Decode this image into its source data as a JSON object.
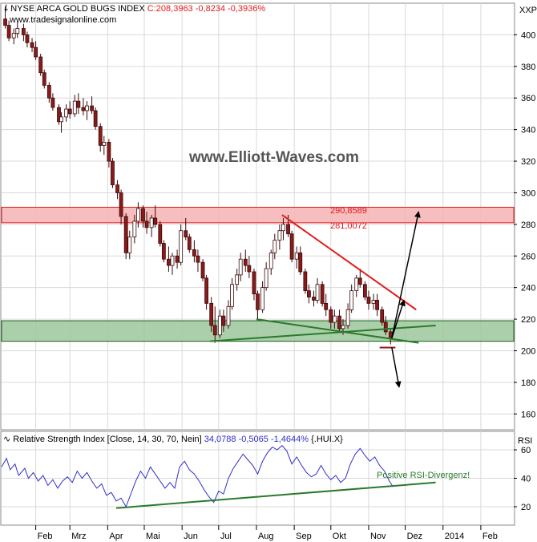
{
  "colors": {
    "candle_up": "#ffffff",
    "candle_down": "#8b1a1a",
    "resistance_zone": "#f4b3b3",
    "support_zone": "#9cc79c",
    "red_line": "#e31b1b",
    "green_line": "#2b7a2b",
    "rsi_line": "#2f2fc9",
    "rsi_value": "#2f2fc9",
    "price_change": "#e31b1b",
    "grid": "#d9d9d9"
  },
  "header": {
    "title": "NYSE ARCA GOLD BUGS INDEX",
    "last": "C:208,3963 -0,8234 -0,3936%",
    "source": "www.tradesignalonline.com",
    "axis_label": "XXP"
  },
  "watermark": "www.Elliott-Waves.com",
  "rsi_header": {
    "study": "Relative Strength Index [Close, 14, 30, 70, Nein]",
    "value": "34,0788 -0,5065 -1,4644%",
    "symbol": "{.HUI.X}",
    "axis_label": "RSI"
  },
  "annotations": {
    "resistance_top": "290,8589",
    "resistance_bottom": "281,0072",
    "divergence": "Positive RSI-Divergenz!"
  },
  "chart_data": [
    {
      "type": "candlestick",
      "title": "NYSE ARCA GOLD BUGS INDEX",
      "x_ticks": [
        "Feb",
        "Mrz",
        "Apr",
        "Mai",
        "Jun",
        "Jul",
        "Aug",
        "Sep",
        "Okt",
        "Nov",
        "Dez",
        "2014",
        "Feb"
      ],
      "y_ticks": [
        160,
        180,
        200,
        220,
        240,
        260,
        280,
        300,
        320,
        340,
        360,
        380,
        400
      ],
      "ylim": [
        150,
        420
      ],
      "xlim": [
        "2013-01-04",
        "2014-02-28"
      ],
      "grid": true,
      "ohlc": [
        [
          "2013-01-07",
          410,
          418,
          404,
          406
        ],
        [
          "2013-01-10",
          406,
          409,
          396,
          398
        ],
        [
          "2013-01-14",
          398,
          404,
          394,
          401
        ],
        [
          "2013-01-17",
          401,
          408,
          398,
          404
        ],
        [
          "2013-01-22",
          404,
          407,
          396,
          400
        ],
        [
          "2013-01-25",
          400,
          402,
          392,
          395
        ],
        [
          "2013-01-29",
          395,
          398,
          389,
          392
        ],
        [
          "2013-02-01",
          392,
          396,
          384,
          386
        ],
        [
          "2013-02-05",
          386,
          388,
          374,
          376
        ],
        [
          "2013-02-08",
          376,
          378,
          366,
          368
        ],
        [
          "2013-02-12",
          368,
          370,
          357,
          360
        ],
        [
          "2013-02-15",
          360,
          363,
          352,
          354
        ],
        [
          "2013-02-20",
          354,
          356,
          343,
          345
        ],
        [
          "2013-02-22",
          345,
          351,
          338,
          348
        ],
        [
          "2013-02-26",
          348,
          356,
          345,
          353
        ],
        [
          "2013-03-01",
          353,
          358,
          347,
          350
        ],
        [
          "2013-03-05",
          350,
          362,
          348,
          358
        ],
        [
          "2013-03-08",
          358,
          363,
          350,
          354
        ],
        [
          "2013-03-12",
          354,
          360,
          349,
          352
        ],
        [
          "2013-03-15",
          352,
          358,
          346,
          355
        ],
        [
          "2013-03-19",
          355,
          361,
          350,
          352
        ],
        [
          "2013-03-22",
          352,
          354,
          340,
          342
        ],
        [
          "2013-03-26",
          342,
          344,
          326,
          330
        ],
        [
          "2013-03-29",
          330,
          336,
          324,
          332
        ],
        [
          "2013-04-02",
          332,
          334,
          316,
          320
        ],
        [
          "2013-04-05",
          320,
          322,
          303,
          305
        ],
        [
          "2013-04-09",
          305,
          308,
          296,
          300
        ],
        [
          "2013-04-12",
          300,
          302,
          280,
          285
        ],
        [
          "2013-04-16",
          285,
          287,
          258,
          262
        ],
        [
          "2013-04-19",
          262,
          276,
          258,
          272
        ],
        [
          "2013-04-23",
          272,
          286,
          268,
          282
        ],
        [
          "2013-04-26",
          282,
          294,
          278,
          290
        ],
        [
          "2013-04-30",
          290,
          292,
          278,
          282
        ],
        [
          "2013-05-03",
          282,
          288,
          274,
          278
        ],
        [
          "2013-05-07",
          278,
          286,
          272,
          284
        ],
        [
          "2013-05-10",
          284,
          292,
          278,
          280
        ],
        [
          "2013-05-14",
          280,
          282,
          266,
          268
        ],
        [
          "2013-05-17",
          268,
          270,
          256,
          258
        ],
        [
          "2013-05-21",
          258,
          266,
          250,
          254
        ],
        [
          "2013-05-24",
          254,
          262,
          248,
          260
        ],
        [
          "2013-05-28",
          260,
          264,
          252,
          256
        ],
        [
          "2013-05-31",
          256,
          280,
          254,
          276
        ],
        [
          "2013-06-04",
          276,
          284,
          270,
          272
        ],
        [
          "2013-06-07",
          272,
          274,
          262,
          264
        ],
        [
          "2013-06-11",
          264,
          270,
          256,
          260
        ],
        [
          "2013-06-14",
          260,
          264,
          250,
          256
        ],
        [
          "2013-06-18",
          256,
          258,
          244,
          246
        ],
        [
          "2013-06-21",
          246,
          248,
          226,
          230
        ],
        [
          "2013-06-25",
          230,
          234,
          212,
          216
        ],
        [
          "2013-06-28",
          216,
          228,
          205,
          210
        ],
        [
          "2013-07-02",
          210,
          226,
          208,
          222
        ],
        [
          "2013-07-05",
          222,
          226,
          212,
          216
        ],
        [
          "2013-07-09",
          216,
          232,
          214,
          228
        ],
        [
          "2013-07-12",
          228,
          246,
          226,
          242
        ],
        [
          "2013-07-16",
          242,
          252,
          238,
          248
        ],
        [
          "2013-07-19",
          248,
          262,
          244,
          258
        ],
        [
          "2013-07-23",
          258,
          264,
          250,
          254
        ],
        [
          "2013-07-26",
          254,
          260,
          246,
          250
        ],
        [
          "2013-07-30",
          250,
          252,
          232,
          236
        ],
        [
          "2013-08-02",
          236,
          238,
          220,
          226
        ],
        [
          "2013-08-06",
          226,
          244,
          224,
          240
        ],
        [
          "2013-08-09",
          240,
          256,
          238,
          252
        ],
        [
          "2013-08-13",
          252,
          264,
          248,
          262
        ],
        [
          "2013-08-16",
          262,
          274,
          258,
          270
        ],
        [
          "2013-08-20",
          270,
          280,
          264,
          276
        ],
        [
          "2013-08-23",
          276,
          284,
          270,
          280
        ],
        [
          "2013-08-27",
          280,
          286,
          272,
          274
        ],
        [
          "2013-08-30",
          274,
          276,
          256,
          258
        ],
        [
          "2013-09-03",
          258,
          266,
          252,
          262
        ],
        [
          "2013-09-06",
          262,
          266,
          248,
          250
        ],
        [
          "2013-09-10",
          250,
          252,
          236,
          238
        ],
        [
          "2013-09-13",
          238,
          242,
          230,
          234
        ],
        [
          "2013-09-17",
          234,
          238,
          228,
          232
        ],
        [
          "2013-09-20",
          232,
          246,
          230,
          242
        ],
        [
          "2013-09-24",
          242,
          244,
          228,
          230
        ],
        [
          "2013-09-27",
          230,
          236,
          222,
          226
        ],
        [
          "2013-10-01",
          226,
          228,
          214,
          218
        ],
        [
          "2013-10-04",
          218,
          226,
          214,
          222
        ],
        [
          "2013-10-08",
          222,
          226,
          212,
          214
        ],
        [
          "2013-10-11",
          214,
          220,
          210,
          216
        ],
        [
          "2013-10-15",
          216,
          230,
          214,
          226
        ],
        [
          "2013-10-18",
          226,
          242,
          224,
          238
        ],
        [
          "2013-10-22",
          238,
          248,
          234,
          246
        ],
        [
          "2013-10-25",
          246,
          252,
          240,
          242
        ],
        [
          "2013-10-29",
          242,
          244,
          232,
          234
        ],
        [
          "2013-11-01",
          234,
          238,
          226,
          230
        ],
        [
          "2013-11-05",
          230,
          236,
          226,
          232
        ],
        [
          "2013-11-08",
          232,
          236,
          222,
          226
        ],
        [
          "2013-11-12",
          226,
          228,
          216,
          218
        ],
        [
          "2013-11-15",
          218,
          222,
          210,
          212
        ],
        [
          "2013-11-19",
          212,
          214,
          204,
          208
        ]
      ],
      "zones": [
        {
          "from": 281.0072,
          "to": 290.8589,
          "color": "resistance_zone"
        },
        {
          "from": 206,
          "to": 219,
          "color": "support_zone"
        }
      ],
      "trendlines": [
        {
          "color": "red_line",
          "points": [
            [
              "2013-08-22",
              286
            ],
            [
              "2013-12-10",
              226
            ]
          ]
        },
        {
          "color": "green_line",
          "points": [
            [
              "2013-06-24",
              206
            ],
            [
              "2013-12-26",
              216
            ]
          ]
        },
        {
          "color": "green_line",
          "points": [
            [
              "2013-08-01",
              220
            ],
            [
              "2013-12-12",
              205
            ]
          ]
        },
        {
          "color": "candle_down",
          "points": [
            [
              "2013-11-10",
              202
            ],
            [
              "2013-11-23",
              202
            ]
          ]
        }
      ],
      "arrows": [
        {
          "points": [
            [
              "2013-11-20",
              208
            ],
            [
              "2013-12-12",
              288
            ]
          ]
        },
        {
          "points": [
            [
              "2013-11-20",
              208
            ],
            [
              "2013-11-30",
              232
            ]
          ]
        },
        {
          "points": [
            [
              "2013-11-20",
              202
            ],
            [
              "2013-11-26",
              177
            ]
          ]
        }
      ]
    },
    {
      "type": "line",
      "title": "Relative Strength Index",
      "x_ticks": [
        "Feb",
        "Mrz",
        "Apr",
        "Mai",
        "Jun",
        "Jul",
        "Aug",
        "Sep",
        "Okt",
        "Nov",
        "Dez",
        "2014",
        "Feb"
      ],
      "y_ticks": [
        20,
        40,
        60
      ],
      "ylim": [
        7,
        73
      ],
      "grid": true,
      "series": [
        {
          "color": "rsi_line",
          "points": [
            [
              "2013-01-04",
              48
            ],
            [
              "2013-01-08",
              54
            ],
            [
              "2013-01-11",
              46
            ],
            [
              "2013-01-15",
              50
            ],
            [
              "2013-01-18",
              42
            ],
            [
              "2013-01-23",
              47
            ],
            [
              "2013-01-26",
              40
            ],
            [
              "2013-01-30",
              44
            ],
            [
              "2013-02-03",
              38
            ],
            [
              "2013-02-07",
              42
            ],
            [
              "2013-02-11",
              35
            ],
            [
              "2013-02-15",
              39
            ],
            [
              "2013-02-19",
              33
            ],
            [
              "2013-02-23",
              38
            ],
            [
              "2013-02-27",
              41
            ],
            [
              "2013-03-03",
              37
            ],
            [
              "2013-03-07",
              45
            ],
            [
              "2013-03-11",
              40
            ],
            [
              "2013-03-15",
              44
            ],
            [
              "2013-03-19",
              38
            ],
            [
              "2013-03-23",
              33
            ],
            [
              "2013-03-27",
              36
            ],
            [
              "2013-03-31",
              28
            ],
            [
              "2013-04-04",
              30
            ],
            [
              "2013-04-08",
              24
            ],
            [
              "2013-04-12",
              26
            ],
            [
              "2013-04-16",
              20
            ],
            [
              "2013-04-20",
              29
            ],
            [
              "2013-04-24",
              38
            ],
            [
              "2013-04-28",
              45
            ],
            [
              "2013-05-02",
              40
            ],
            [
              "2013-05-06",
              48
            ],
            [
              "2013-05-10",
              43
            ],
            [
              "2013-05-14",
              38
            ],
            [
              "2013-05-18",
              33
            ],
            [
              "2013-05-22",
              37
            ],
            [
              "2013-05-26",
              33
            ],
            [
              "2013-05-30",
              48
            ],
            [
              "2013-06-03",
              52
            ],
            [
              "2013-06-07",
              46
            ],
            [
              "2013-06-11",
              43
            ],
            [
              "2013-06-15",
              38
            ],
            [
              "2013-06-19",
              32
            ],
            [
              "2013-06-23",
              27
            ],
            [
              "2013-06-27",
              23
            ],
            [
              "2013-07-01",
              31
            ],
            [
              "2013-07-05",
              29
            ],
            [
              "2013-07-09",
              40
            ],
            [
              "2013-07-13",
              47
            ],
            [
              "2013-07-17",
              52
            ],
            [
              "2013-07-21",
              57
            ],
            [
              "2013-07-25",
              53
            ],
            [
              "2013-07-29",
              49
            ],
            [
              "2013-08-02",
              43
            ],
            [
              "2013-08-06",
              52
            ],
            [
              "2013-08-10",
              58
            ],
            [
              "2013-08-14",
              62
            ],
            [
              "2013-08-18",
              60
            ],
            [
              "2013-08-22",
              63
            ],
            [
              "2013-08-26",
              59
            ],
            [
              "2013-08-30",
              50
            ],
            [
              "2013-09-03",
              55
            ],
            [
              "2013-09-07",
              49
            ],
            [
              "2013-09-11",
              44
            ],
            [
              "2013-09-15",
              41
            ],
            [
              "2013-09-19",
              43
            ],
            [
              "2013-09-23",
              49
            ],
            [
              "2013-09-27",
              43
            ],
            [
              "2013-10-01",
              39
            ],
            [
              "2013-10-05",
              42
            ],
            [
              "2013-10-09",
              37
            ],
            [
              "2013-10-13",
              40
            ],
            [
              "2013-10-17",
              50
            ],
            [
              "2013-10-21",
              57
            ],
            [
              "2013-10-25",
              61
            ],
            [
              "2013-10-29",
              56
            ],
            [
              "2013-11-02",
              52
            ],
            [
              "2013-11-06",
              55
            ],
            [
              "2013-11-10",
              49
            ],
            [
              "2013-11-14",
              45
            ],
            [
              "2013-11-18",
              38
            ],
            [
              "2013-11-21",
              34
            ]
          ]
        },
        {
          "color": "green_line",
          "points": [
            [
              "2013-04-08",
              19
            ],
            [
              "2013-12-26",
              37
            ]
          ]
        }
      ]
    }
  ]
}
